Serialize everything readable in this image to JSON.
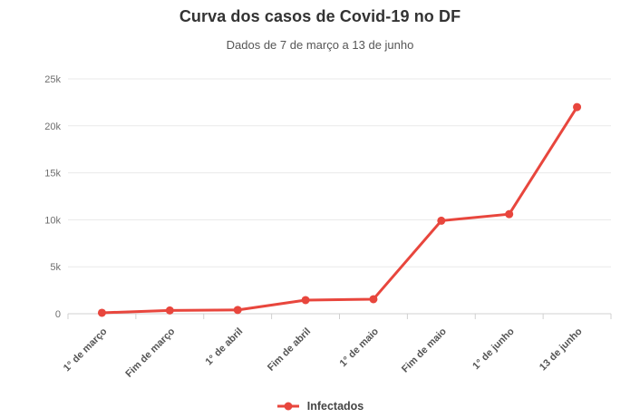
{
  "chart_data": {
    "type": "line",
    "title": "Curva dos casos de Covid-19 no DF",
    "subtitle": "Dados de 7 de março a 13 de junho",
    "categories": [
      "1° de março",
      "Fim de março",
      "1° de abril",
      "Fim de abril",
      "1° de maio",
      "Fim de maio",
      "1° de junho",
      "13 de junho"
    ],
    "series": [
      {
        "name": "Infectados",
        "color": "#e8463d",
        "values": [
          100,
          350,
          400,
          1450,
          1550,
          9900,
          10600,
          22000
        ]
      }
    ],
    "ylim": [
      0,
      25000
    ],
    "yticks": [
      {
        "value": 0,
        "label": "0"
      },
      {
        "value": 5000,
        "label": "5k"
      },
      {
        "value": 10000,
        "label": "10k"
      },
      {
        "value": 15000,
        "label": "15k"
      },
      {
        "value": 20000,
        "label": "20k"
      },
      {
        "value": 25000,
        "label": "25k"
      }
    ],
    "grid": true,
    "legend_position": "bottom",
    "grid_color": "#e9e9e9",
    "axis_color": "#d0d0d0"
  }
}
